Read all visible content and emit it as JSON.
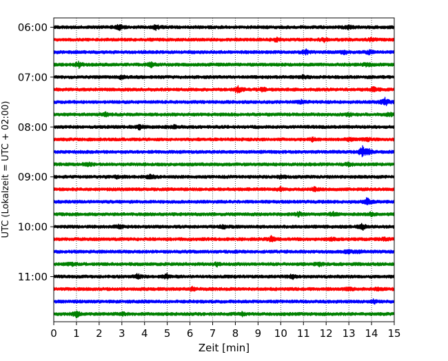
{
  "chart_data": {
    "type": "line",
    "subtype": "helicorder",
    "title": "",
    "xlabel": "Zeit  [min]",
    "ylabel": "UTC (Lokalzeit = UTC + 02:00)",
    "xlim": [
      0,
      15
    ],
    "x_ticks": [
      0,
      1,
      2,
      3,
      4,
      5,
      6,
      7,
      8,
      9,
      10,
      11,
      12,
      13,
      14,
      15
    ],
    "x_tick_labels": [
      "0",
      "1",
      "2",
      "3",
      "4",
      "5",
      "6",
      "7",
      "8",
      "9",
      "10",
      "11",
      "12",
      "13",
      "14",
      "15"
    ],
    "y_tick_labels": [
      "06:00",
      "07:00",
      "08:00",
      "09:00",
      "10:00",
      "11:00"
    ],
    "row_interval_minutes": 15,
    "start_time": "06:00",
    "grid": "vertical dotted at each minute",
    "legend": "none",
    "color_cycle": [
      "#000000",
      "#ff0000",
      "#0000ff",
      "#008000"
    ],
    "traces": [
      {
        "start": "06:00",
        "events": [
          {
            "t": 2.9,
            "amp": 0.6
          },
          {
            "t": 4.5,
            "amp": 0.4
          },
          {
            "t": 13.0,
            "amp": 0.3
          }
        ]
      },
      {
        "start": "06:15",
        "events": [
          {
            "t": 9.8,
            "amp": 0.35
          },
          {
            "t": 11.9,
            "amp": 0.35
          },
          {
            "t": 14.0,
            "amp": 0.3
          }
        ]
      },
      {
        "start": "06:30",
        "events": [
          {
            "t": 11.1,
            "amp": 0.45
          },
          {
            "t": 12.8,
            "amp": 0.45
          },
          {
            "t": 13.9,
            "amp": 0.3
          }
        ]
      },
      {
        "start": "06:45",
        "events": [
          {
            "t": 1.1,
            "amp": 0.55
          },
          {
            "t": 4.3,
            "amp": 0.4
          },
          {
            "t": 13.8,
            "amp": 0.3
          }
        ]
      },
      {
        "start": "07:00",
        "events": [
          {
            "t": 3.0,
            "amp": 0.35
          },
          {
            "t": 11.0,
            "amp": 0.3
          }
        ]
      },
      {
        "start": "07:15",
        "events": [
          {
            "t": 8.1,
            "amp": 0.8
          },
          {
            "t": 9.2,
            "amp": 0.35
          },
          {
            "t": 14.1,
            "amp": 0.45
          }
        ]
      },
      {
        "start": "07:30",
        "events": [
          {
            "t": 10.9,
            "amp": 0.3
          },
          {
            "t": 14.6,
            "amp": 0.75
          }
        ]
      },
      {
        "start": "07:45",
        "events": [
          {
            "t": 2.3,
            "amp": 0.35
          },
          {
            "t": 13.0,
            "amp": 0.35
          },
          {
            "t": 14.8,
            "amp": 0.3
          }
        ]
      },
      {
        "start": "08:00",
        "events": [
          {
            "t": 3.8,
            "amp": 0.45
          },
          {
            "t": 5.3,
            "amp": 0.3
          }
        ]
      },
      {
        "start": "08:15",
        "events": [
          {
            "t": 11.4,
            "amp": 0.3
          },
          {
            "t": 13.0,
            "amp": 0.35
          },
          {
            "t": 13.8,
            "amp": 0.3
          }
        ]
      },
      {
        "start": "08:30",
        "events": [
          {
            "t": 13.6,
            "amp": 1.0
          },
          {
            "t": 13.9,
            "amp": 0.4
          }
        ]
      },
      {
        "start": "08:45",
        "events": [
          {
            "t": 1.5,
            "amp": 0.35
          },
          {
            "t": 13.0,
            "amp": 0.4
          }
        ]
      },
      {
        "start": "09:00",
        "events": [
          {
            "t": 2.8,
            "amp": 0.3
          },
          {
            "t": 4.3,
            "amp": 0.45
          },
          {
            "t": 10.0,
            "amp": 0.3
          }
        ]
      },
      {
        "start": "09:15",
        "events": [
          {
            "t": 10.0,
            "amp": 0.3
          },
          {
            "t": 11.5,
            "amp": 0.35
          }
        ]
      },
      {
        "start": "09:30",
        "events": [
          {
            "t": 13.8,
            "amp": 0.7
          }
        ]
      },
      {
        "start": "09:45",
        "events": [
          {
            "t": 10.8,
            "amp": 0.35
          },
          {
            "t": 12.3,
            "amp": 0.35
          },
          {
            "t": 14.0,
            "amp": 0.35
          }
        ]
      },
      {
        "start": "10:00",
        "events": [
          {
            "t": 2.9,
            "amp": 0.45
          },
          {
            "t": 7.5,
            "amp": 0.3
          },
          {
            "t": 13.6,
            "amp": 0.6
          }
        ]
      },
      {
        "start": "10:15",
        "events": [
          {
            "t": 9.6,
            "amp": 0.55
          },
          {
            "t": 12.2,
            "amp": 0.3
          },
          {
            "t": 14.6,
            "amp": 0.35
          }
        ]
      },
      {
        "start": "10:30",
        "events": [
          {
            "t": 13.0,
            "amp": 0.45
          },
          {
            "t": 13.5,
            "amp": 0.35
          }
        ]
      },
      {
        "start": "10:45",
        "events": [
          {
            "t": 0.8,
            "amp": 0.35
          },
          {
            "t": 7.2,
            "amp": 0.3
          },
          {
            "t": 11.7,
            "amp": 0.35
          }
        ]
      },
      {
        "start": "11:00",
        "events": [
          {
            "t": 3.7,
            "amp": 0.45
          },
          {
            "t": 5.0,
            "amp": 0.45
          },
          {
            "t": 10.5,
            "amp": 0.4
          }
        ]
      },
      {
        "start": "11:15",
        "events": [
          {
            "t": 6.1,
            "amp": 0.3
          },
          {
            "t": 13.0,
            "amp": 0.35
          },
          {
            "t": 14.3,
            "amp": 0.35
          }
        ]
      },
      {
        "start": "11:30",
        "events": [
          {
            "t": 14.1,
            "amp": 0.35
          }
        ]
      },
      {
        "start": "11:45",
        "events": [
          {
            "t": 1.0,
            "amp": 0.6
          },
          {
            "t": 3.0,
            "amp": 0.3
          },
          {
            "t": 8.3,
            "amp": 0.3
          }
        ]
      }
    ]
  }
}
